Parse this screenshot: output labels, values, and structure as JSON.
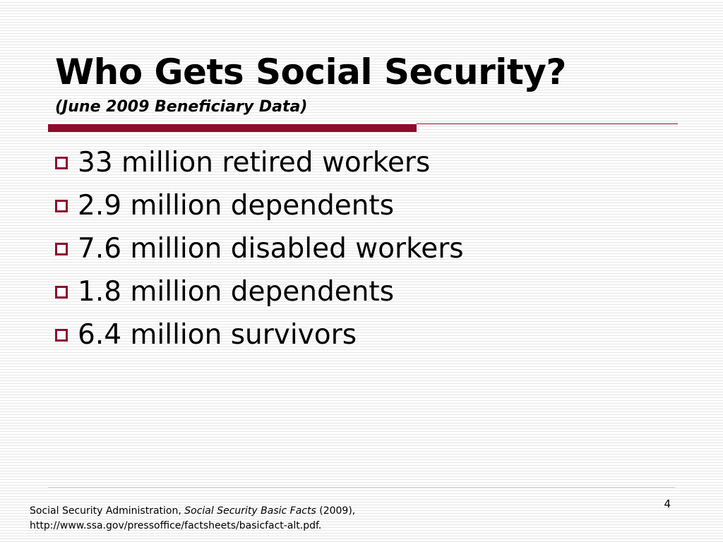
{
  "slide": {
    "title": "Who Gets Social Security?",
    "subtitle": "(June 2009 Beneficiary Data)",
    "accent_color": "#8e0a2e",
    "bullet_icon": "hollow-square-bullet-icon",
    "bullets": [
      "33 million retired workers",
      "2.9 million dependents",
      "7.6 million disabled workers",
      "1.8 million dependents",
      "6.4 million survivors"
    ],
    "page_number": "4"
  },
  "footer": {
    "source_author": "Social Security Administration, ",
    "source_title": "Social Security Basic Facts",
    "source_year": " (2009),",
    "source_url": "http://www.ssa.gov/pressoffice/factsheets/basicfact-alt.pdf."
  }
}
